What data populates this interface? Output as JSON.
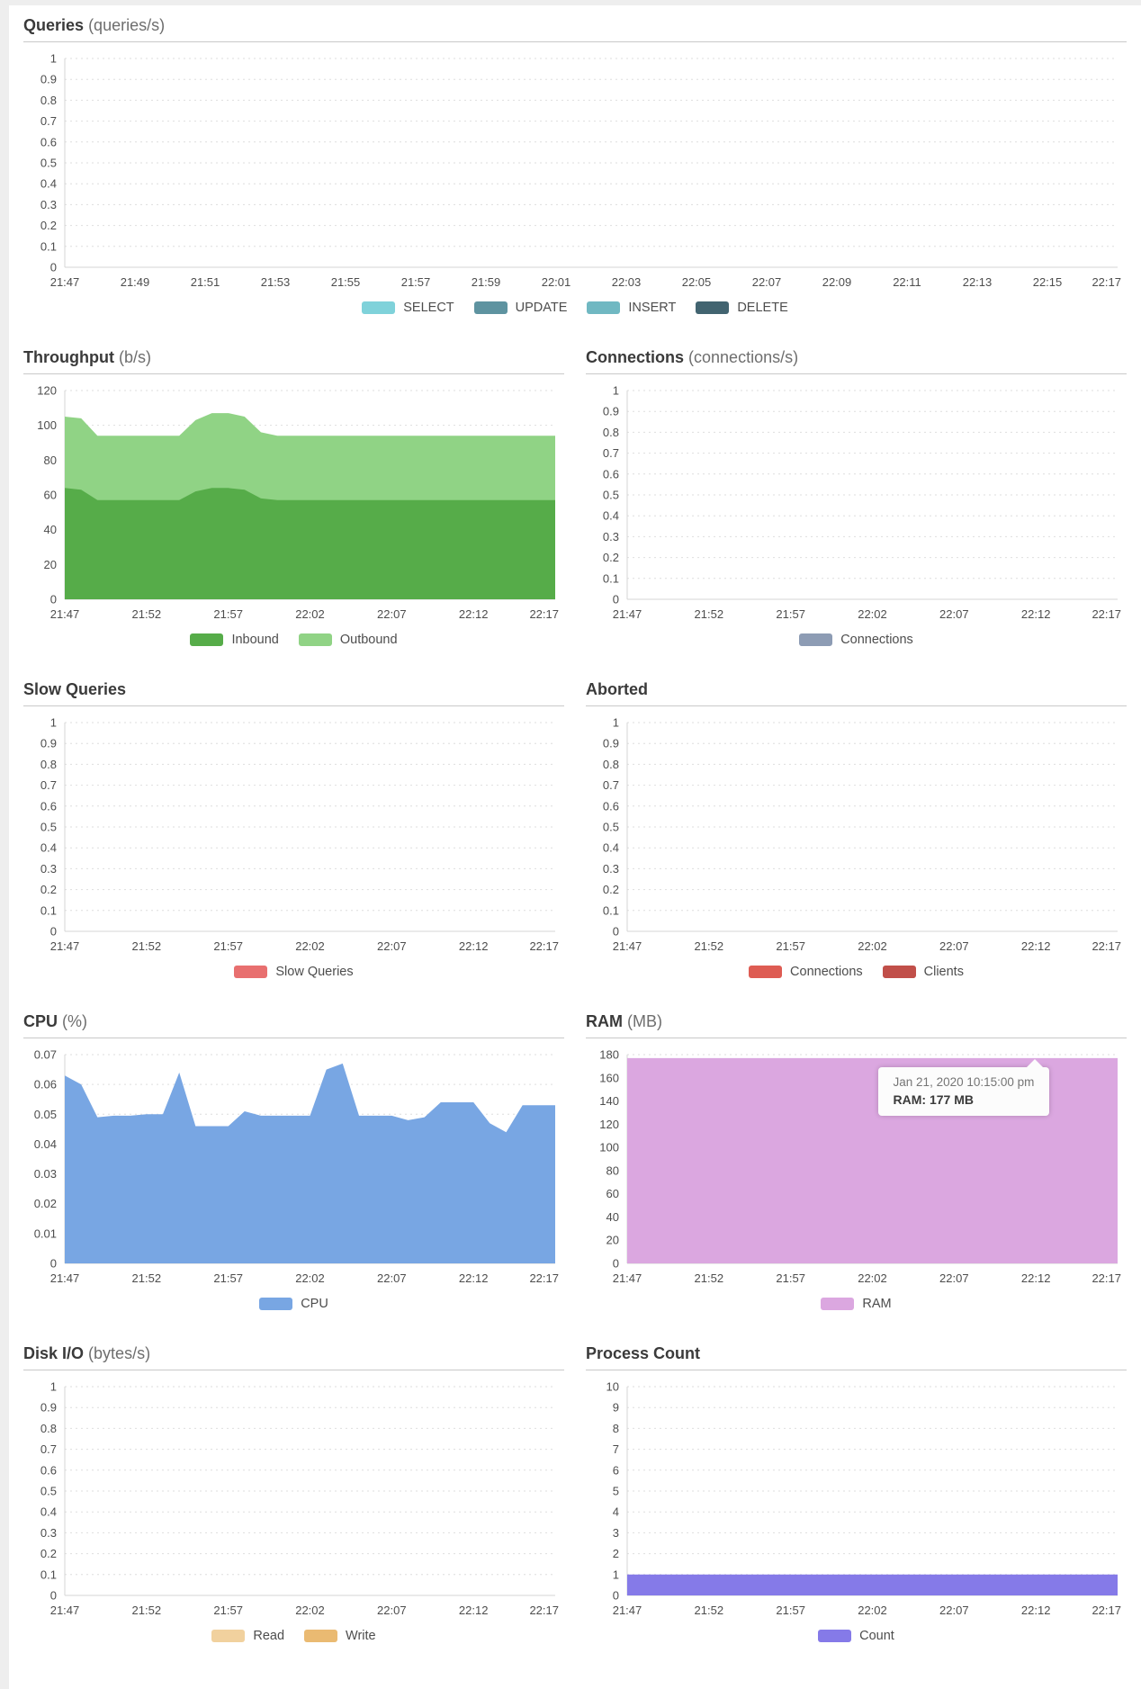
{
  "time_range": {
    "start": "21:47",
    "end": "22:17",
    "span_minutes": 30
  },
  "chart_data": [
    {
      "id": "queries",
      "type": "area",
      "title": "Queries",
      "unit": "(queries/s)",
      "ylim": [
        0,
        1
      ],
      "ytick_step": 0.1,
      "grid": "dotted",
      "legend_position": "bottom",
      "x_ticks": [
        "21:47",
        "21:49",
        "21:51",
        "21:53",
        "21:55",
        "21:57",
        "21:59",
        "22:01",
        "22:03",
        "22:05",
        "22:07",
        "22:09",
        "22:11",
        "22:13",
        "22:15",
        "22:17"
      ],
      "series": [
        {
          "name": "SELECT",
          "color": "#7fd2da",
          "values": []
        },
        {
          "name": "UPDATE",
          "color": "#5e93a0",
          "values": []
        },
        {
          "name": "INSERT",
          "color": "#70b8c2",
          "values": []
        },
        {
          "name": "DELETE",
          "color": "#426470",
          "values": []
        }
      ]
    },
    {
      "id": "throughput",
      "type": "area",
      "title": "Throughput",
      "unit": "(b/s)",
      "ylim": [
        0,
        120
      ],
      "ytick_step": 20,
      "grid": "dotted",
      "legend_position": "bottom",
      "x_start": "21:47",
      "x_interval_minutes": 1,
      "x_ticks": [
        "21:47",
        "21:52",
        "21:57",
        "22:02",
        "22:07",
        "22:12",
        "22:17"
      ],
      "series": [
        {
          "name": "Outbound",
          "color": "#90d385",
          "values": [
            105,
            104,
            94,
            94,
            94,
            94,
            94,
            94,
            103,
            107,
            107,
            105,
            96,
            94,
            94,
            94,
            94,
            94,
            94,
            94,
            94,
            94,
            94,
            94,
            94,
            94,
            94,
            94,
            94,
            94,
            94
          ],
          "legend_order": 2
        },
        {
          "name": "Inbound",
          "color": "#56ac49",
          "values": [
            64,
            63,
            57,
            57,
            57,
            57,
            57,
            57,
            62,
            64,
            64,
            63,
            58,
            57,
            57,
            57,
            57,
            57,
            57,
            57,
            57,
            57,
            57,
            57,
            57,
            57,
            57,
            57,
            57,
            57,
            57
          ],
          "legend_order": 1
        }
      ]
    },
    {
      "id": "connections",
      "type": "area",
      "title": "Connections",
      "unit": "(connections/s)",
      "ylim": [
        0,
        1
      ],
      "ytick_step": 0.1,
      "grid": "dotted",
      "legend_position": "bottom",
      "x_ticks": [
        "21:47",
        "21:52",
        "21:57",
        "22:02",
        "22:07",
        "22:12",
        "22:17"
      ],
      "series": [
        {
          "name": "Connections",
          "color": "#8d9cb4",
          "values": []
        }
      ]
    },
    {
      "id": "slow-queries",
      "type": "area",
      "title": "Slow Queries",
      "unit": "",
      "ylim": [
        0,
        1
      ],
      "ytick_step": 0.1,
      "grid": "dotted",
      "legend_position": "bottom",
      "x_ticks": [
        "21:47",
        "21:52",
        "21:57",
        "22:02",
        "22:07",
        "22:12",
        "22:17"
      ],
      "series": [
        {
          "name": "Slow Queries",
          "color": "#e86f6f",
          "values": []
        }
      ]
    },
    {
      "id": "aborted",
      "type": "area",
      "title": "Aborted",
      "unit": "",
      "ylim": [
        0,
        1
      ],
      "ytick_step": 0.1,
      "grid": "dotted",
      "legend_position": "bottom",
      "x_ticks": [
        "21:47",
        "21:52",
        "21:57",
        "22:02",
        "22:07",
        "22:12",
        "22:17"
      ],
      "series": [
        {
          "name": "Connections",
          "color": "#de5c53",
          "values": []
        },
        {
          "name": "Clients",
          "color": "#c14f49",
          "values": []
        }
      ]
    },
    {
      "id": "cpu",
      "type": "area",
      "title": "CPU",
      "unit": "(%)",
      "ylim": [
        0,
        0.07
      ],
      "ytick_step": 0.01,
      "grid": "dotted",
      "legend_position": "bottom",
      "x_start": "21:47",
      "x_interval_minutes": 1,
      "x_ticks": [
        "21:47",
        "21:52",
        "21:57",
        "22:02",
        "22:07",
        "22:12",
        "22:17"
      ],
      "series": [
        {
          "name": "CPU",
          "color": "#78a6e3",
          "values": [
            0.063,
            0.06,
            0.049,
            0.0495,
            0.0495,
            0.05,
            0.05,
            0.064,
            0.046,
            0.046,
            0.046,
            0.051,
            0.0495,
            0.0495,
            0.0495,
            0.0495,
            0.065,
            0.067,
            0.0495,
            0.0495,
            0.0495,
            0.048,
            0.049,
            0.054,
            0.054,
            0.054,
            0.047,
            0.044,
            0.053,
            0.053,
            0.053
          ]
        }
      ]
    },
    {
      "id": "ram",
      "type": "area",
      "title": "RAM",
      "unit": "(MB)",
      "ylim": [
        0,
        180
      ],
      "ytick_step": 20,
      "grid": "dotted",
      "legend_position": "bottom",
      "x_ticks": [
        "21:47",
        "21:52",
        "21:57",
        "22:02",
        "22:07",
        "22:12",
        "22:17"
      ],
      "series": [
        {
          "name": "RAM",
          "color": "#dba7e0",
          "values": [
            177,
            177
          ]
        }
      ],
      "tooltip": {
        "datetime": "Jan 21, 2020 10:15:00 pm",
        "value": "RAM: 177 MB"
      }
    },
    {
      "id": "disk-io",
      "type": "area",
      "title": "Disk I/O",
      "unit": "(bytes/s)",
      "ylim": [
        0,
        1
      ],
      "ytick_step": 0.1,
      "grid": "dotted",
      "legend_position": "bottom",
      "x_ticks": [
        "21:47",
        "21:52",
        "21:57",
        "22:02",
        "22:07",
        "22:12",
        "22:17"
      ],
      "series": [
        {
          "name": "Read",
          "color": "#f1d19e",
          "values": []
        },
        {
          "name": "Write",
          "color": "#eaba72",
          "values": []
        }
      ]
    },
    {
      "id": "process-count",
      "type": "area",
      "title": "Process Count",
      "unit": "",
      "ylim": [
        0,
        10
      ],
      "ytick_step": 1,
      "grid": "dotted",
      "legend_position": "bottom",
      "x_ticks": [
        "21:47",
        "21:52",
        "21:57",
        "22:02",
        "22:07",
        "22:12",
        "22:17"
      ],
      "series": [
        {
          "name": "Count",
          "color": "#857ae8",
          "values": [
            1,
            1
          ]
        }
      ]
    }
  ]
}
